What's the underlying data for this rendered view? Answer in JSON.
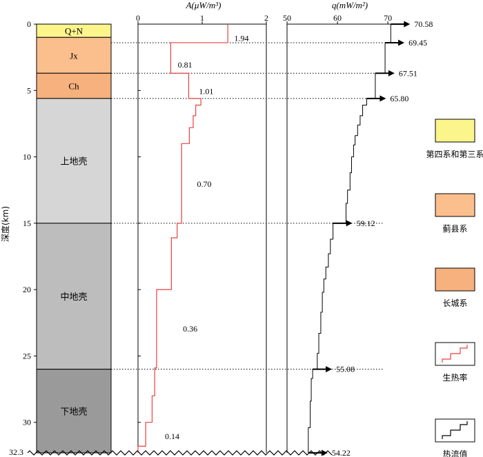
{
  "y_axis": {
    "label": "深度(km)",
    "ticks": [
      "0",
      "5",
      "10",
      "15",
      "20",
      "25",
      "30"
    ],
    "bottom_label": "32.3",
    "max_depth": 32.3
  },
  "column": {
    "layers": [
      {
        "label": "Q+N",
        "top": 0,
        "bottom": 1.0,
        "color": "#fbf58c"
      },
      {
        "label": "Jx",
        "top": 1.0,
        "bottom": 3.7,
        "color": "#fbbf8d"
      },
      {
        "label": "Ch",
        "top": 3.7,
        "bottom": 5.6,
        "color": "#f6b17e"
      },
      {
        "label": "上地壳",
        "top": 5.6,
        "bottom": 15.0,
        "color": "#d6d6d6"
      },
      {
        "label": "中地壳",
        "top": 15.0,
        "bottom": 26.0,
        "color": "#bdbdbd"
      },
      {
        "label": "下地壳",
        "top": 26.0,
        "bottom": 32.3,
        "color": "#9a9a9a"
      }
    ]
  },
  "chart_data": [
    {
      "type": "line",
      "title": "A(μW/m³)",
      "xlabel": "A(μW/m³)",
      "ylabel": "深度(km)",
      "x_ticks": [
        0,
        1,
        2
      ],
      "xlim": [
        0,
        2
      ],
      "ylim": [
        32.3,
        0
      ],
      "color": "#e8413c",
      "points": [
        [
          1.4,
          0
        ],
        [
          1.4,
          1.4
        ],
        [
          0.51,
          1.4
        ],
        [
          0.51,
          3.7
        ],
        [
          0.79,
          3.7
        ],
        [
          0.79,
          5.6
        ],
        [
          0.98,
          5.6
        ],
        [
          0.98,
          6.1
        ],
        [
          0.9,
          6.1
        ],
        [
          0.9,
          6.9
        ],
        [
          0.86,
          6.9
        ],
        [
          0.86,
          7.8
        ],
        [
          0.8,
          7.8
        ],
        [
          0.8,
          9.0
        ],
        [
          0.68,
          9.0
        ],
        [
          0.68,
          15.0
        ],
        [
          0.61,
          15.0
        ],
        [
          0.61,
          16.1
        ],
        [
          0.52,
          16.1
        ],
        [
          0.52,
          20.0
        ],
        [
          0.29,
          20.0
        ],
        [
          0.29,
          25.9
        ],
        [
          0.26,
          25.9
        ],
        [
          0.26,
          28.0
        ],
        [
          0.22,
          28.0
        ],
        [
          0.22,
          30.0
        ],
        [
          0.12,
          30.0
        ],
        [
          0.12,
          31.8
        ],
        [
          0.0,
          31.8
        ],
        [
          0.0,
          32.3
        ]
      ],
      "labels": [
        {
          "text": "1.94",
          "x": 1.5,
          "y": 1.0
        },
        {
          "text": "0.81",
          "x": 0.62,
          "y": 3.0
        },
        {
          "text": "1.01",
          "x": 0.95,
          "y": 5.0
        },
        {
          "text": "0.70",
          "x": 0.92,
          "y": 12.0
        },
        {
          "text": "0.36",
          "x": 0.7,
          "y": 22.9
        },
        {
          "text": "0.14",
          "x": 0.42,
          "y": 31.0
        }
      ]
    },
    {
      "type": "line",
      "title": "q(mW/m²)",
      "xlabel": "q(mW/m²)",
      "ylabel": "深度(km)",
      "x_ticks": [
        50,
        60,
        70
      ],
      "xlim": [
        50,
        73
      ],
      "ylim": [
        32.3,
        0
      ],
      "color": "#000000",
      "points": [
        [
          70.58,
          0
        ],
        [
          70.58,
          1.4
        ],
        [
          69.45,
          1.4
        ],
        [
          69.45,
          3.7
        ],
        [
          67.51,
          3.7
        ],
        [
          67.51,
          5.6
        ],
        [
          65.8,
          5.6
        ],
        [
          65.8,
          6.1
        ],
        [
          65.0,
          6.1
        ],
        [
          65.0,
          6.9
        ],
        [
          64.5,
          6.9
        ],
        [
          64.5,
          7.6
        ],
        [
          64.0,
          7.6
        ],
        [
          64.0,
          8.4
        ],
        [
          63.5,
          8.4
        ],
        [
          63.5,
          9.1
        ],
        [
          63.2,
          9.1
        ],
        [
          63.2,
          10.0
        ],
        [
          62.8,
          10.0
        ],
        [
          62.8,
          11.2
        ],
        [
          62.5,
          11.2
        ],
        [
          62.5,
          12.5
        ],
        [
          62.0,
          12.5
        ],
        [
          62.0,
          13.5
        ],
        [
          61.7,
          13.5
        ],
        [
          61.7,
          15.0
        ],
        [
          59.12,
          15.0
        ],
        [
          59.12,
          16.2
        ],
        [
          58.6,
          16.2
        ],
        [
          58.6,
          17.3
        ],
        [
          58.2,
          17.3
        ],
        [
          58.2,
          18.3
        ],
        [
          57.7,
          18.3
        ],
        [
          57.7,
          19.2
        ],
        [
          57.3,
          19.2
        ],
        [
          57.3,
          20.2
        ],
        [
          57.0,
          20.2
        ],
        [
          57.0,
          21.7
        ],
        [
          56.7,
          21.7
        ],
        [
          56.7,
          23.3
        ],
        [
          56.3,
          23.3
        ],
        [
          56.3,
          24.8
        ],
        [
          56.0,
          24.8
        ],
        [
          56.0,
          26.0
        ],
        [
          55.08,
          26.0
        ],
        [
          55.08,
          26.7
        ],
        [
          54.8,
          26.7
        ],
        [
          54.8,
          28.4
        ],
        [
          54.6,
          28.4
        ],
        [
          54.6,
          30.4
        ],
        [
          54.22,
          30.4
        ],
        [
          54.22,
          32.3
        ]
      ],
      "arrows": [
        {
          "value": "70.58",
          "depth": 0
        },
        {
          "value": "69.45",
          "depth": 1.4
        },
        {
          "value": "67.51",
          "depth": 3.7
        },
        {
          "value": "65.80",
          "depth": 5.6
        },
        {
          "value": "59.12",
          "depth": 15.0
        },
        {
          "value": "55.08",
          "depth": 26.0
        },
        {
          "value": "54.22",
          "depth": 32.3
        }
      ]
    }
  ],
  "legend": [
    {
      "label": "第四系和第三系",
      "kind": "fill",
      "color": "#fbf58c"
    },
    {
      "label": "蓟县系",
      "kind": "fill",
      "color": "#fbbf8d"
    },
    {
      "label": "长城系",
      "kind": "fill",
      "color": "#f6b17e"
    },
    {
      "label": "生热率",
      "kind": "line",
      "color": "#e8413c"
    },
    {
      "label": "热流值",
      "kind": "line",
      "color": "#000000"
    }
  ]
}
